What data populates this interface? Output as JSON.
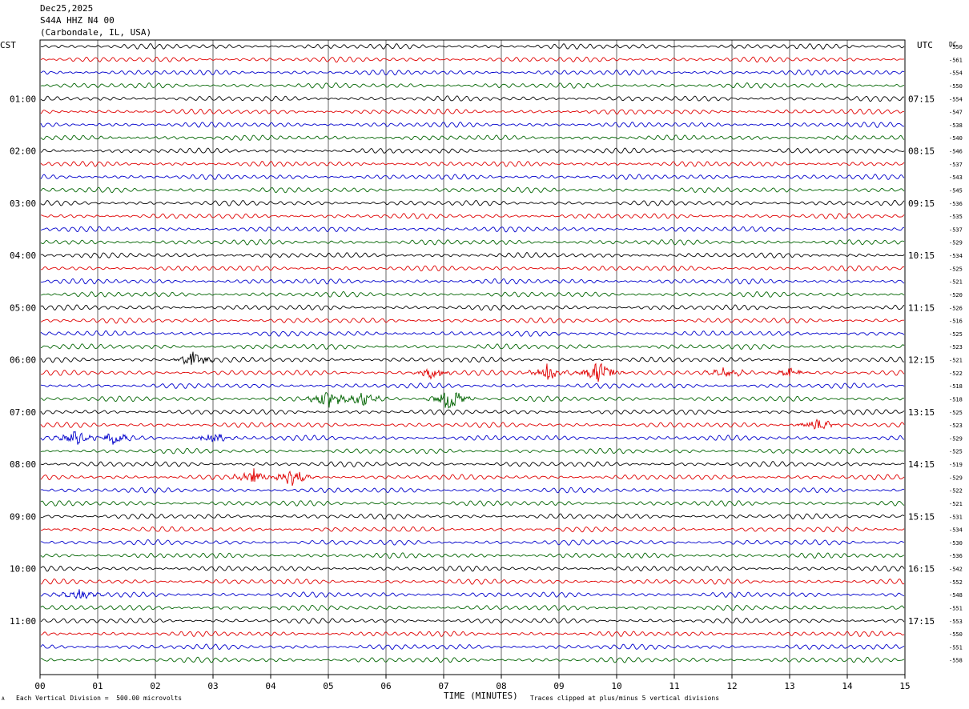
{
  "header": {
    "date": "Dec25,2025",
    "station": "S44A HHZ N4 00",
    "location": "(Carbondale, IL, USA)"
  },
  "footer": {
    "axis_title": "TIME (MINUTES)",
    "vertical_division_note": "Each Vertical Division =  500.00 microvolts",
    "clip_note": "Traces clipped at plus/minus 5 vertical divisions",
    "corner_mark": "A"
  },
  "colors": {
    "trace_cycle": [
      "#000000",
      "#e00000",
      "#0000cc",
      "#006400"
    ],
    "grid": "#000000"
  },
  "chart_data": {
    "type": "line",
    "subtype": "helicorder",
    "left_axis_label": "CST",
    "right_axis_label": "UTC",
    "right_column_label": "DC",
    "x_ticks": [
      "00",
      "01",
      "02",
      "03",
      "04",
      "05",
      "06",
      "07",
      "08",
      "09",
      "10",
      "11",
      "12",
      "13",
      "14",
      "15"
    ],
    "xlim": [
      0,
      15
    ],
    "cst_hour_labels": [
      "01:00",
      "02:00",
      "03:00",
      "04:00",
      "05:00",
      "06:00",
      "07:00",
      "08:00",
      "09:00",
      "10:00",
      "11:00"
    ],
    "utc_hour_labels": [
      "07:15",
      "08:15",
      "09:15",
      "10:15",
      "11:15",
      "12:15",
      "13:15",
      "14:15",
      "15:15",
      "16:15",
      "17:15"
    ],
    "row_count": 48,
    "minutes_per_row": 15,
    "dc_offsets": [
      -550,
      -561,
      -554,
      -550,
      -554,
      -547,
      -538,
      -540,
      -546,
      -537,
      -543,
      -545,
      -536,
      -535,
      -537,
      -529,
      -534,
      -525,
      -521,
      -520,
      -526,
      -516,
      -525,
      -523,
      -521,
      -522,
      -518,
      -518,
      -525,
      -523,
      -529,
      -525,
      -519,
      -529,
      -522,
      -521,
      -531,
      -534,
      -530,
      -536,
      -542,
      -552,
      -548,
      -551,
      -553,
      -550,
      -551,
      -558
    ],
    "events": [
      {
        "row": 24,
        "minute": 2.65,
        "amplitude": 2.2
      },
      {
        "row": 25,
        "minute": 6.8,
        "amplitude": 1.5
      },
      {
        "row": 25,
        "minute": 8.8,
        "amplitude": 2.2
      },
      {
        "row": 25,
        "minute": 9.7,
        "amplitude": 3.2
      },
      {
        "row": 25,
        "minute": 11.9,
        "amplitude": 1.5
      },
      {
        "row": 25,
        "minute": 13.0,
        "amplitude": 1.2
      },
      {
        "row": 27,
        "minute": 5.0,
        "amplitude": 2.5
      },
      {
        "row": 27,
        "minute": 5.6,
        "amplitude": 1.8
      },
      {
        "row": 27,
        "minute": 7.1,
        "amplitude": 3.2
      },
      {
        "row": 29,
        "minute": 13.5,
        "amplitude": 1.6
      },
      {
        "row": 30,
        "minute": 0.6,
        "amplitude": 2.0
      },
      {
        "row": 30,
        "minute": 1.3,
        "amplitude": 1.6
      },
      {
        "row": 30,
        "minute": 3.0,
        "amplitude": 1.6
      },
      {
        "row": 33,
        "minute": 3.7,
        "amplitude": 2.0
      },
      {
        "row": 33,
        "minute": 4.35,
        "amplitude": 2.5
      },
      {
        "row": 42,
        "minute": 0.7,
        "amplitude": 1.4
      }
    ]
  }
}
